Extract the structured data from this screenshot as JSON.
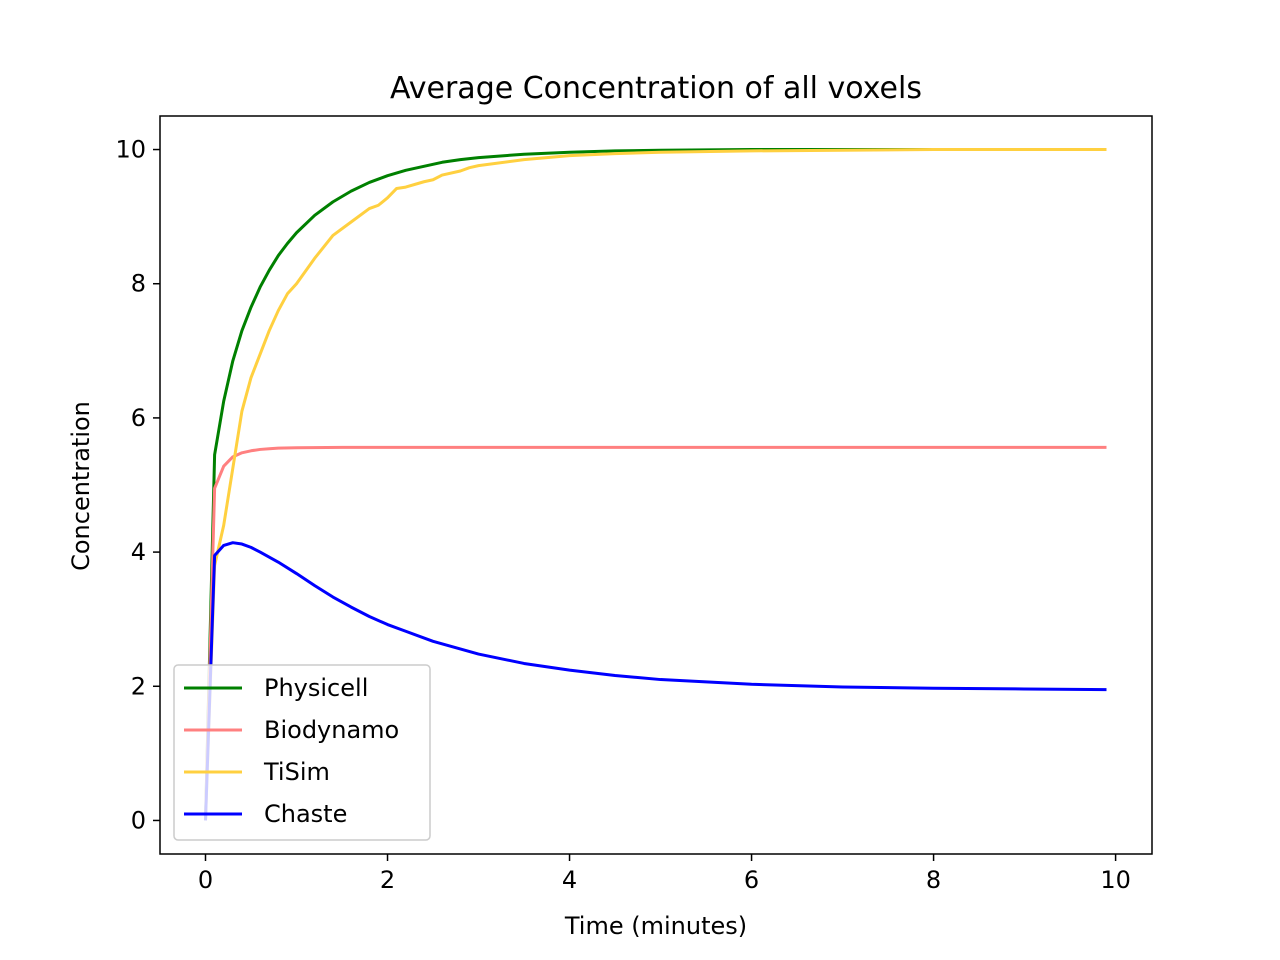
{
  "chart_data": {
    "type": "line",
    "title": "Average Concentration of all voxels",
    "xlabel": "Time (minutes)",
    "ylabel": "Concentration",
    "xlim": [
      -0.5,
      10.4
    ],
    "ylim": [
      -0.5,
      10.5
    ],
    "xticks": [
      0,
      2,
      4,
      6,
      8,
      10
    ],
    "yticks": [
      0,
      2,
      4,
      6,
      8,
      10
    ],
    "legend_position": "lower-left",
    "grid": false,
    "series": [
      {
        "name": "Physicell",
        "color": "#008000",
        "opacity": 1,
        "x": [
          0,
          0.1,
          0.2,
          0.3,
          0.4,
          0.5,
          0.6,
          0.7,
          0.8,
          0.9,
          1.0,
          1.2,
          1.4,
          1.6,
          1.8,
          2.0,
          2.2,
          2.4,
          2.6,
          2.8,
          3.0,
          3.5,
          4.0,
          4.5,
          5.0,
          6.0,
          7.0,
          8.0,
          9.0,
          9.9
        ],
        "y": [
          0,
          5.45,
          6.25,
          6.85,
          7.3,
          7.65,
          7.95,
          8.2,
          8.42,
          8.6,
          8.76,
          9.02,
          9.22,
          9.38,
          9.51,
          9.61,
          9.69,
          9.75,
          9.81,
          9.85,
          9.88,
          9.93,
          9.96,
          9.98,
          9.99,
          10.0,
          10.0,
          10.0,
          10.0,
          10.0
        ]
      },
      {
        "name": "Biodynamo",
        "color": "#ff8080",
        "opacity": 1,
        "x": [
          0,
          0.1,
          0.2,
          0.3,
          0.4,
          0.5,
          0.6,
          0.7,
          0.8,
          1.0,
          1.5,
          2.0,
          3.0,
          5.0,
          7.0,
          9.9
        ],
        "y": [
          0,
          4.95,
          5.28,
          5.42,
          5.48,
          5.51,
          5.53,
          5.54,
          5.55,
          5.555,
          5.56,
          5.56,
          5.56,
          5.56,
          5.56,
          5.56
        ],
        "z": 1
      },
      {
        "name": "TiSim",
        "color": "#ffd040",
        "opacity": 1,
        "x": [
          0,
          0.1,
          0.2,
          0.3,
          0.4,
          0.5,
          0.6,
          0.7,
          0.8,
          0.9,
          1.0,
          1.2,
          1.4,
          1.6,
          1.8,
          1.9,
          2.0,
          2.1,
          2.2,
          2.4,
          2.5,
          2.6,
          2.8,
          2.9,
          3.0,
          3.5,
          4.0,
          4.5,
          5.0,
          6.0,
          7.0,
          8.0,
          9.0,
          9.9
        ],
        "y": [
          0,
          3.8,
          4.4,
          5.25,
          6.1,
          6.6,
          6.95,
          7.3,
          7.6,
          7.85,
          8.0,
          8.38,
          8.72,
          8.92,
          9.12,
          9.17,
          9.28,
          9.42,
          9.44,
          9.52,
          9.55,
          9.62,
          9.68,
          9.73,
          9.76,
          9.85,
          9.91,
          9.94,
          9.96,
          9.98,
          9.99,
          10.0,
          10.0,
          10.0
        ]
      },
      {
        "name": "Chaste",
        "color": "#0000ff",
        "opacity": 1,
        "x": [
          0,
          0.1,
          0.2,
          0.3,
          0.4,
          0.5,
          0.6,
          0.8,
          1.0,
          1.2,
          1.4,
          1.6,
          1.8,
          2.0,
          2.2,
          2.5,
          3.0,
          3.5,
          4.0,
          4.5,
          5.0,
          6.0,
          7.0,
          8.0,
          9.0,
          9.9
        ],
        "y": [
          0,
          3.95,
          4.1,
          4.14,
          4.12,
          4.07,
          4.0,
          3.85,
          3.68,
          3.5,
          3.33,
          3.18,
          3.04,
          2.92,
          2.82,
          2.67,
          2.48,
          2.34,
          2.24,
          2.16,
          2.1,
          2.03,
          1.99,
          1.97,
          1.96,
          1.95
        ]
      }
    ]
  }
}
